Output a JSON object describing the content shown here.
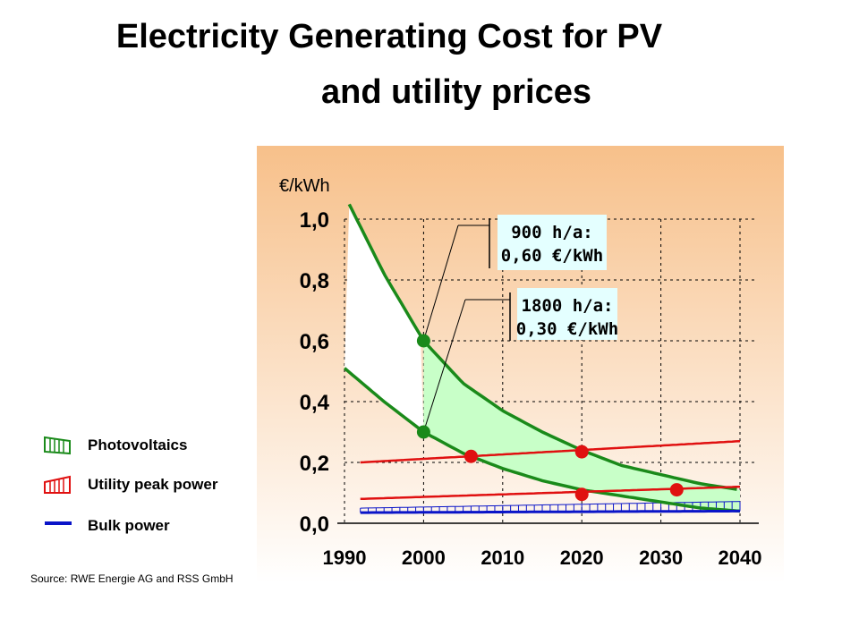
{
  "title_line1": "Electricity Generating Cost for PV",
  "title_line2": "and utility prices",
  "source": "Source: RWE Energie AG and RSS GmbH",
  "legend": [
    {
      "label": "Photovoltaics",
      "color": "#1a8a1a",
      "icon": "vertical-hatch-green"
    },
    {
      "label": "Utility peak power",
      "color": "#e01010",
      "icon": "vertical-hatch-red"
    },
    {
      "label": "Bulk power",
      "color": "#0a14c8",
      "icon": "solid-line-blue"
    }
  ],
  "colors": {
    "plot_bg_top": "#f7c08a",
    "plot_bg_bottom": "#ffffff",
    "pv": "#1a8a1a",
    "pv_fill": "#c8ffc8",
    "utility": "#e01010",
    "bulk": "#0a14c8",
    "callout_bg": "#e4ffff"
  },
  "chart_data": {
    "type": "line",
    "title": "Electricity Generating Cost for PV and utility prices",
    "ylabel": "€/kWh",
    "xlabel": "",
    "xlim": [
      1990,
      2040
    ],
    "ylim": [
      0,
      1.0
    ],
    "x_ticks": [
      "1990",
      "2000",
      "2010",
      "2020",
      "2030",
      "2040"
    ],
    "y_ticks": [
      "0,0",
      "0,2",
      "0,4",
      "0,6",
      "0,8",
      "1,0"
    ],
    "grid": true,
    "series": [
      {
        "role": "pv_upper",
        "x": [
          1990,
          1995,
          2000,
          2005,
          2010,
          2015,
          2020,
          2025,
          2030,
          2035,
          2040
        ],
        "values": [
          1.08,
          0.82,
          0.6,
          0.46,
          0.37,
          0.3,
          0.24,
          0.19,
          0.16,
          0.13,
          0.11
        ]
      },
      {
        "role": "pv_lower",
        "x": [
          1990,
          1995,
          2000,
          2005,
          2010,
          2015,
          2020,
          2025,
          2030,
          2035,
          2040
        ],
        "values": [
          0.51,
          0.4,
          0.3,
          0.23,
          0.18,
          0.14,
          0.11,
          0.09,
          0.07,
          0.05,
          0.04
        ]
      },
      {
        "role": "utility_peak",
        "x": [
          1992,
          2040
        ],
        "values": [
          0.2,
          0.27
        ]
      },
      {
        "role": "utility_low",
        "x": [
          1992,
          2040
        ],
        "values": [
          0.08,
          0.12
        ]
      },
      {
        "role": "bulk_power",
        "x": [
          1992,
          2040
        ],
        "values": [
          0.035,
          0.04
        ]
      }
    ],
    "points": [
      {
        "x": 2000,
        "y": 0.6,
        "color": "green"
      },
      {
        "x": 2000,
        "y": 0.3,
        "color": "green"
      },
      {
        "x": 2006,
        "y": 0.22,
        "color": "red"
      },
      {
        "x": 2020,
        "y": 0.235,
        "color": "red"
      },
      {
        "x": 2020,
        "y": 0.095,
        "color": "red"
      },
      {
        "x": 2032,
        "y": 0.11,
        "color": "red"
      }
    ],
    "annotations": [
      {
        "line1": "900 h/a:",
        "line2": "0,60 €/kWh",
        "x": 2000,
        "y": 0.6
      },
      {
        "line1": "1800 h/a:",
        "line2": "0,30 €/kWh",
        "x": 2000,
        "y": 0.3
      }
    ]
  }
}
